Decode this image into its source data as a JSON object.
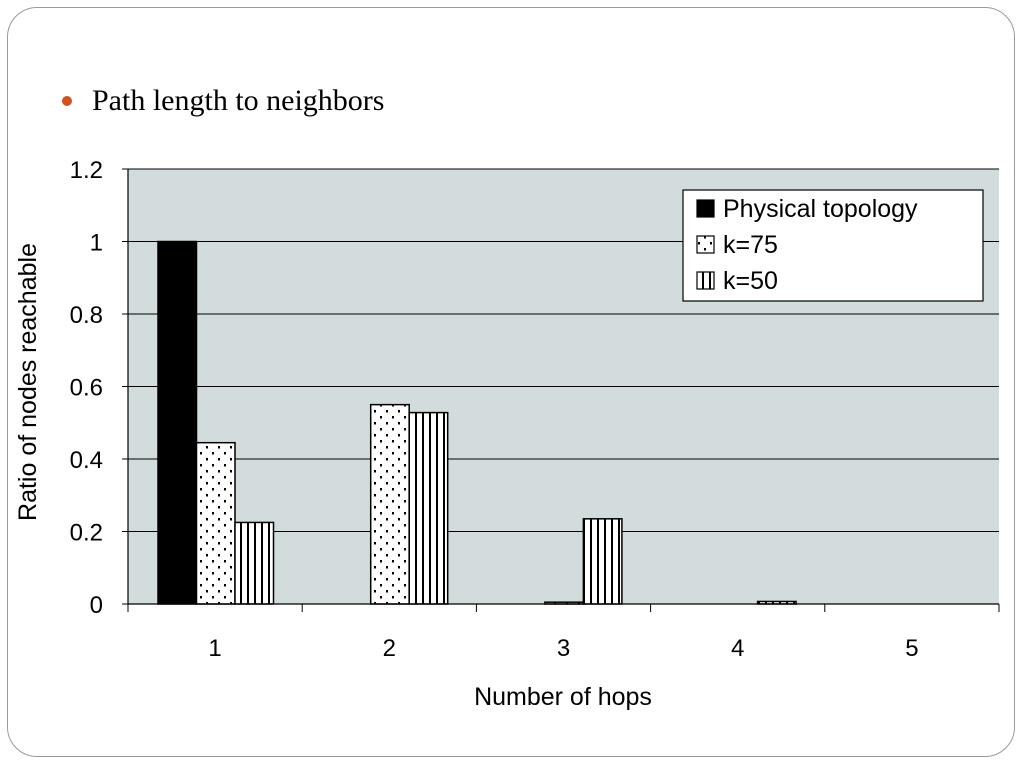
{
  "slide": {
    "bullet_text": "Path length to neighbors"
  },
  "colors": {
    "plot_background": "#d3dcdc",
    "bullet": "#d0521f",
    "bar_stroke": "#000000",
    "physical_fill": "#000000",
    "pattern_background": "#ffffff"
  },
  "chart_data": {
    "type": "bar",
    "title": "",
    "xlabel": "Number of hops",
    "ylabel": "Ratio of nodes reachable",
    "categories": [
      "1",
      "2",
      "3",
      "4",
      "5"
    ],
    "ylim": [
      0,
      1.2
    ],
    "yticks": [
      "0",
      "0.2",
      "0.4",
      "0.6",
      "0.8",
      "1",
      "1.2"
    ],
    "grid": "horizontal",
    "legend_position": "top-right",
    "series": [
      {
        "name": "Physical topology",
        "pattern": "solid",
        "values": [
          1.0,
          0,
          0,
          0,
          0
        ]
      },
      {
        "name": "k=75",
        "pattern": "dotted",
        "values": [
          0.445,
          0.55,
          0.005,
          0,
          0
        ]
      },
      {
        "name": "k=50",
        "pattern": "vertical-stripes",
        "values": [
          0.225,
          0.528,
          0.235,
          0.007,
          0
        ]
      }
    ]
  }
}
